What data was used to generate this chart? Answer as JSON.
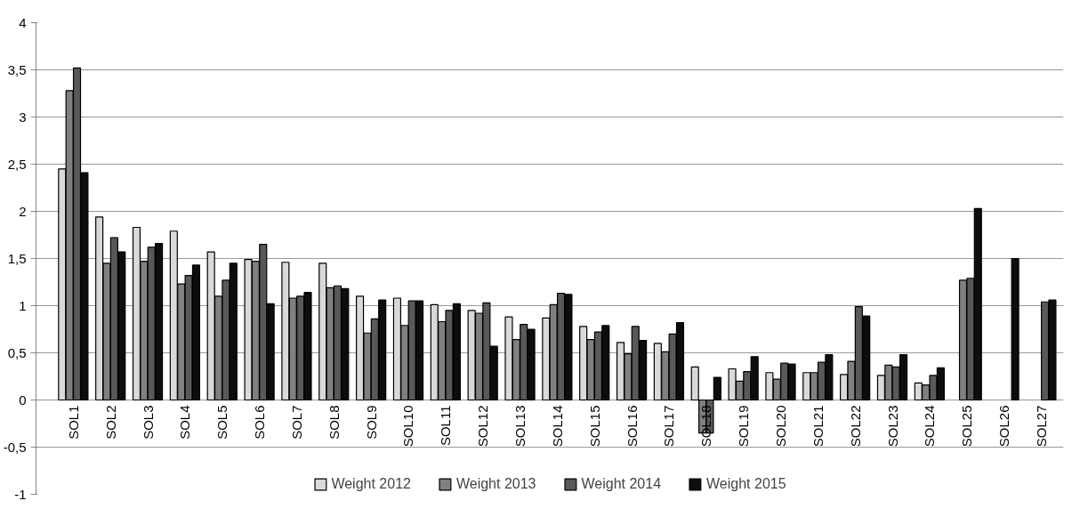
{
  "chart_data": {
    "type": "bar",
    "categories": [
      "SOL1",
      "SOL2",
      "SOL3",
      "SOL4",
      "SOL5",
      "SOL6",
      "SOL7",
      "SOL8",
      "SOL9",
      "SOL10",
      "SOL11",
      "SOL12",
      "SOL13",
      "SOL14",
      "SOL15",
      "SOL16",
      "SOL17",
      "SOL18",
      "SOL19",
      "SOL20",
      "SOL21",
      "SOL22",
      "SOL23",
      "SOL24",
      "SOL25",
      "SOL26",
      "SOL27"
    ],
    "series": [
      {
        "name": "Weight 2012",
        "color": "#d9d9d9",
        "values": [
          2.45,
          1.94,
          1.83,
          1.79,
          1.57,
          1.49,
          1.46,
          1.45,
          1.1,
          1.08,
          1.01,
          0.95,
          0.88,
          0.87,
          0.78,
          0.61,
          0.6,
          0.35,
          0.33,
          0.29,
          0.29,
          0.27,
          0.26,
          0.18,
          null,
          null,
          null
        ]
      },
      {
        "name": "Weight 2013",
        "color": "#808080",
        "values": [
          3.28,
          1.45,
          1.47,
          1.23,
          1.1,
          1.47,
          1.08,
          1.19,
          0.71,
          0.79,
          0.83,
          0.92,
          0.64,
          1.01,
          0.64,
          0.49,
          0.51,
          -0.35,
          0.2,
          0.22,
          0.29,
          0.41,
          0.37,
          0.16,
          1.27,
          null,
          null
        ]
      },
      {
        "name": "Weight 2014",
        "color": "#595959",
        "values": [
          3.52,
          1.72,
          1.62,
          1.32,
          1.27,
          1.65,
          1.1,
          1.21,
          0.86,
          1.05,
          0.95,
          1.03,
          0.8,
          1.13,
          0.72,
          0.78,
          0.7,
          -0.35,
          0.3,
          0.39,
          0.4,
          0.99,
          0.35,
          0.26,
          1.29,
          null,
          1.04
        ]
      },
      {
        "name": "Weight 2015",
        "color": "#0d0d0d",
        "values": [
          2.41,
          1.57,
          1.66,
          1.43,
          1.45,
          1.02,
          1.14,
          1.18,
          1.06,
          1.05,
          1.02,
          0.57,
          0.75,
          1.12,
          0.79,
          0.63,
          0.82,
          0.24,
          0.46,
          0.38,
          0.48,
          0.89,
          0.48,
          0.34,
          2.03,
          1.5,
          1.06
        ]
      }
    ],
    "ylim": [
      -1,
      4
    ],
    "yticks": [
      {
        "value": -1,
        "label": "-1"
      },
      {
        "value": -0.5,
        "label": "-0,5"
      },
      {
        "value": 0,
        "label": "0"
      },
      {
        "value": 0.5,
        "label": "0,5"
      },
      {
        "value": 1,
        "label": "1"
      },
      {
        "value": 1.5,
        "label": "1,5"
      },
      {
        "value": 2,
        "label": "2"
      },
      {
        "value": 2.5,
        "label": "2,5"
      },
      {
        "value": 3,
        "label": "3"
      },
      {
        "value": 3.5,
        "label": "3,5"
      },
      {
        "value": 4,
        "label": "4"
      }
    ],
    "grid": "y",
    "legend": "bottom"
  }
}
